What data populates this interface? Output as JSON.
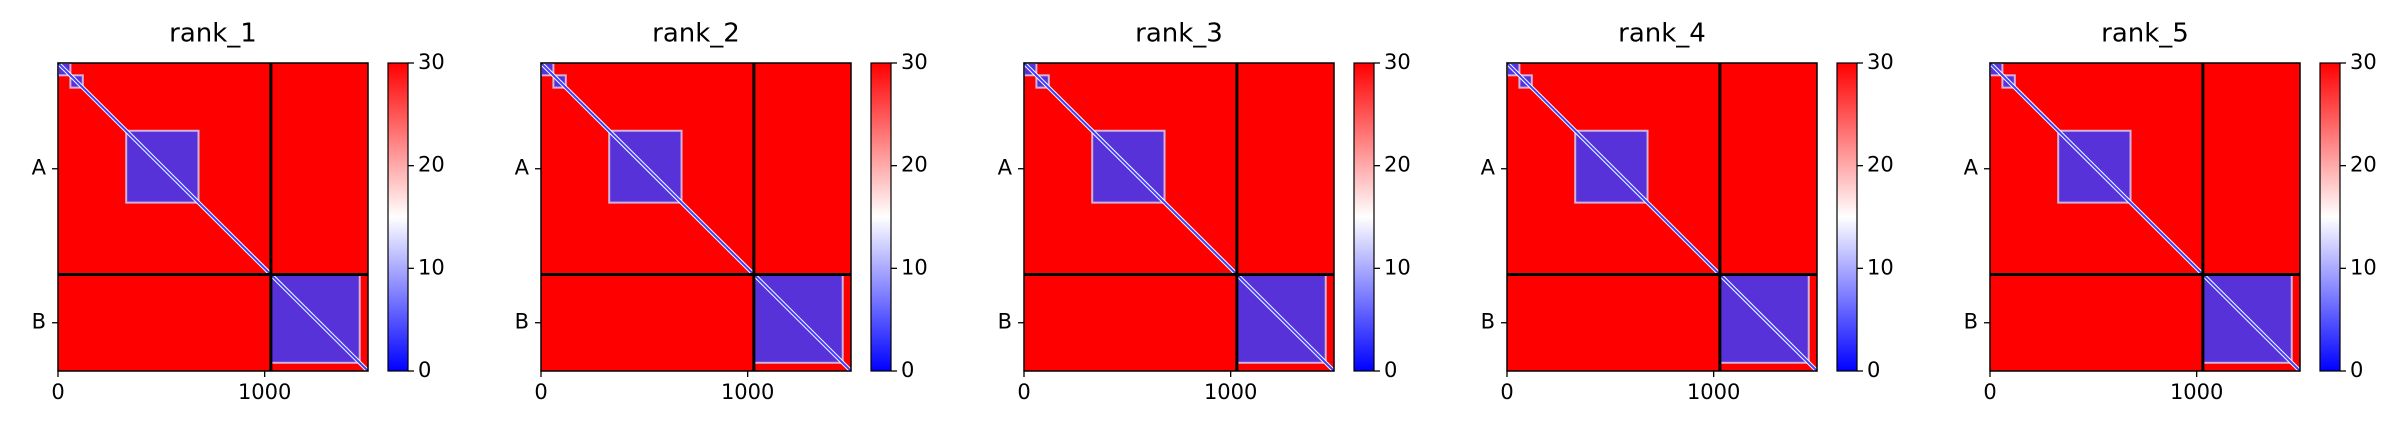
{
  "chart_data": [
    {
      "type": "heatmap",
      "title": "rank_1",
      "xlim": [
        0,
        1500
      ],
      "ylim": [
        1500,
        0
      ],
      "xticks": [
        0,
        1000
      ],
      "yticks": [
        {
          "value": 515,
          "label": "A"
        },
        {
          "value": 1265,
          "label": "B"
        }
      ],
      "chain_breaks": [
        1030
      ],
      "low_error_blocks": [
        [
          0,
          60
        ],
        [
          60,
          120
        ],
        [
          330,
          680
        ],
        [
          1030,
          1460
        ]
      ],
      "clim": [
        0,
        30
      ],
      "cticks": [
        0,
        10,
        20,
        30
      ]
    },
    {
      "type": "heatmap",
      "title": "rank_2",
      "xlim": [
        0,
        1500
      ],
      "ylim": [
        1500,
        0
      ],
      "xticks": [
        0,
        1000
      ],
      "yticks": [
        {
          "value": 515,
          "label": "A"
        },
        {
          "value": 1265,
          "label": "B"
        }
      ],
      "chain_breaks": [
        1030
      ],
      "low_error_blocks": [
        [
          0,
          60
        ],
        [
          60,
          120
        ],
        [
          330,
          680
        ],
        [
          1030,
          1460
        ]
      ],
      "clim": [
        0,
        30
      ],
      "cticks": [
        0,
        10,
        20,
        30
      ]
    },
    {
      "type": "heatmap",
      "title": "rank_3",
      "xlim": [
        0,
        1500
      ],
      "ylim": [
        1500,
        0
      ],
      "xticks": [
        0,
        1000
      ],
      "yticks": [
        {
          "value": 515,
          "label": "A"
        },
        {
          "value": 1265,
          "label": "B"
        }
      ],
      "chain_breaks": [
        1030
      ],
      "low_error_blocks": [
        [
          0,
          60
        ],
        [
          60,
          120
        ],
        [
          330,
          680
        ],
        [
          1030,
          1460
        ]
      ],
      "clim": [
        0,
        30
      ],
      "cticks": [
        0,
        10,
        20,
        30
      ]
    },
    {
      "type": "heatmap",
      "title": "rank_4",
      "xlim": [
        0,
        1500
      ],
      "ylim": [
        1500,
        0
      ],
      "xticks": [
        0,
        1000
      ],
      "yticks": [
        {
          "value": 515,
          "label": "A"
        },
        {
          "value": 1265,
          "label": "B"
        }
      ],
      "chain_breaks": [
        1030
      ],
      "low_error_blocks": [
        [
          0,
          60
        ],
        [
          60,
          120
        ],
        [
          330,
          680
        ],
        [
          1030,
          1460
        ]
      ],
      "clim": [
        0,
        30
      ],
      "cticks": [
        0,
        10,
        20,
        30
      ]
    },
    {
      "type": "heatmap",
      "title": "rank_5",
      "xlim": [
        0,
        1500
      ],
      "ylim": [
        1500,
        0
      ],
      "xticks": [
        0,
        1000
      ],
      "yticks": [
        {
          "value": 515,
          "label": "A"
        },
        {
          "value": 1265,
          "label": "B"
        }
      ],
      "chain_breaks": [
        1030
      ],
      "low_error_blocks": [
        [
          0,
          60
        ],
        [
          60,
          120
        ],
        [
          330,
          680
        ],
        [
          1030,
          1460
        ]
      ],
      "clim": [
        0,
        30
      ],
      "cticks": [
        0,
        10,
        20,
        30
      ]
    }
  ]
}
